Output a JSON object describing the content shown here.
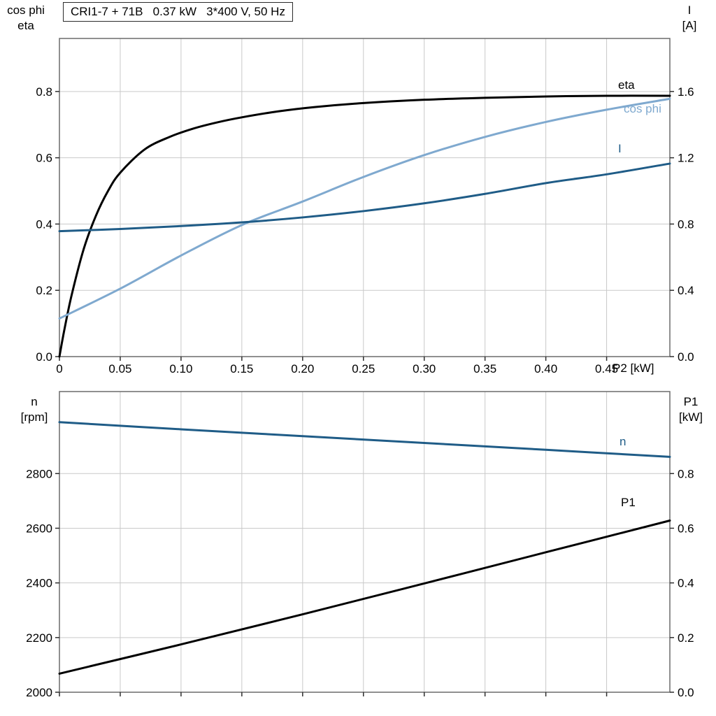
{
  "colors": {
    "curve_black": "#000000",
    "curve_dark_blue": "#1f5c87",
    "curve_light_blue": "#7fa9cf",
    "grid": "#c9c9c9",
    "frame": "#6b6b6b",
    "tick": "#2e2e2e",
    "background": "#ffffff"
  },
  "chart_data": [
    {
      "type": "line",
      "title": "CRI1-7 + 71B   0.37 kW   3*400 V, 50 Hz",
      "x_axis": {
        "label": "P2 [kW]",
        "min": 0,
        "max": 0.502,
        "ticks": [
          0,
          0.05,
          0.1,
          0.15,
          0.2,
          0.25,
          0.3,
          0.35,
          0.4,
          0.45
        ],
        "tick_labels": [
          "0",
          "0.05",
          "0.10",
          "0.15",
          "0.20",
          "0.25",
          "0.30",
          "0.35",
          "0.40",
          "0.45"
        ]
      },
      "y_left": {
        "label_lines": [
          "cos phi",
          "eta"
        ],
        "min": 0,
        "max": 0.96,
        "ticks": [
          0.0,
          0.2,
          0.4,
          0.6,
          0.8
        ],
        "tick_labels": [
          "0.0",
          "0.2",
          "0.4",
          "0.6",
          "0.8"
        ]
      },
      "y_right": {
        "label_lines": [
          "I",
          "[A]"
        ],
        "min": 0,
        "max": 1.92,
        "ticks": [
          0.0,
          0.4,
          0.8,
          1.2,
          1.6
        ],
        "tick_labels": [
          "0.0",
          "0.4",
          "0.8",
          "1.2",
          "1.6"
        ]
      },
      "grid": true,
      "legend_position": "labels-right",
      "series": [
        {
          "name": "eta",
          "color": "curve_black",
          "axis": "left",
          "points": [
            [
              0,
              0
            ],
            [
              0.004,
              0.08
            ],
            [
              0.01,
              0.185
            ],
            [
              0.02,
              0.325
            ],
            [
              0.03,
              0.425
            ],
            [
              0.04,
              0.5
            ],
            [
              0.05,
              0.555
            ],
            [
              0.07,
              0.625
            ],
            [
              0.09,
              0.662
            ],
            [
              0.11,
              0.688
            ],
            [
              0.13,
              0.707
            ],
            [
              0.15,
              0.722
            ],
            [
              0.18,
              0.74
            ],
            [
              0.21,
              0.753
            ],
            [
              0.25,
              0.765
            ],
            [
              0.3,
              0.775
            ],
            [
              0.35,
              0.781
            ],
            [
              0.4,
              0.785
            ],
            [
              0.45,
              0.787
            ],
            [
              0.502,
              0.787
            ]
          ]
        },
        {
          "name": "cos phi",
          "color": "curve_light_blue",
          "axis": "left",
          "points": [
            [
              0,
              0.115
            ],
            [
              0.05,
              0.205
            ],
            [
              0.1,
              0.305
            ],
            [
              0.15,
              0.397
            ],
            [
              0.2,
              0.468
            ],
            [
              0.25,
              0.542
            ],
            [
              0.3,
              0.608
            ],
            [
              0.35,
              0.663
            ],
            [
              0.4,
              0.708
            ],
            [
              0.45,
              0.745
            ],
            [
              0.502,
              0.778
            ]
          ]
        },
        {
          "name": "I",
          "color": "curve_dark_blue",
          "axis": "right",
          "points": [
            [
              0,
              0.757
            ],
            [
              0.05,
              0.77
            ],
            [
              0.1,
              0.788
            ],
            [
              0.15,
              0.81
            ],
            [
              0.2,
              0.84
            ],
            [
              0.25,
              0.878
            ],
            [
              0.3,
              0.925
            ],
            [
              0.35,
              0.982
            ],
            [
              0.4,
              1.047
            ],
            [
              0.45,
              1.1
            ],
            [
              0.502,
              1.165
            ]
          ]
        }
      ]
    },
    {
      "type": "line",
      "title": "",
      "x_axis": {
        "label": "",
        "min": 0,
        "max": 0.502,
        "ticks": [
          0,
          0.05,
          0.1,
          0.15,
          0.2,
          0.25,
          0.3,
          0.35,
          0.4,
          0.45
        ],
        "tick_labels": []
      },
      "y_left": {
        "label_lines": [
          "n",
          "[rpm]"
        ],
        "min": 2000,
        "max": 3100,
        "ticks": [
          2000,
          2200,
          2400,
          2600,
          2800
        ],
        "tick_labels": [
          "2000",
          "2200",
          "2400",
          "2600",
          "2800"
        ]
      },
      "y_right": {
        "label_lines": [
          "P1",
          "[kW]"
        ],
        "min": 0,
        "max": 1.1,
        "ticks": [
          0.0,
          0.2,
          0.4,
          0.6,
          0.8
        ],
        "tick_labels": [
          "0.0",
          "0.2",
          "0.4",
          "0.6",
          "0.8"
        ]
      },
      "grid": true,
      "legend_position": "labels-right",
      "series": [
        {
          "name": "n",
          "color": "curve_dark_blue",
          "axis": "left",
          "points": [
            [
              0,
              2988
            ],
            [
              0.1,
              2962
            ],
            [
              0.2,
              2937
            ],
            [
              0.3,
              2912
            ],
            [
              0.4,
              2887
            ],
            [
              0.502,
              2861
            ]
          ]
        },
        {
          "name": "P1",
          "color": "curve_black",
          "axis": "right",
          "points": [
            [
              0,
              0.068
            ],
            [
              0.1,
              0.175
            ],
            [
              0.2,
              0.285
            ],
            [
              0.3,
              0.398
            ],
            [
              0.4,
              0.512
            ],
            [
              0.502,
              0.628
            ]
          ]
        }
      ]
    }
  ]
}
